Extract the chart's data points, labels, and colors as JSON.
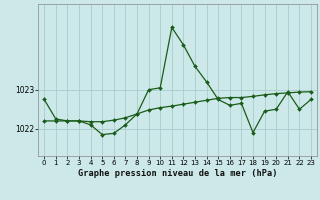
{
  "title": "Graphe pression niveau de la mer (hPa)",
  "background_color": "#cce8e8",
  "grid_color": "#aacccc",
  "line_color": "#1a5c1a",
  "marker_color": "#1a5c1a",
  "x_ticks": [
    0,
    1,
    2,
    3,
    4,
    5,
    6,
    7,
    8,
    9,
    10,
    11,
    12,
    13,
    14,
    15,
    16,
    17,
    18,
    19,
    20,
    21,
    22,
    23
  ],
  "y_ticks": [
    1022,
    1023
  ],
  "ylim": [
    1021.3,
    1025.2
  ],
  "xlim": [
    -0.5,
    23.5
  ],
  "series1_x": [
    0,
    1,
    2,
    3,
    4,
    5,
    6,
    7,
    8,
    9,
    10,
    11,
    12,
    13,
    14,
    15,
    16,
    17,
    18,
    19,
    20,
    21,
    22,
    23
  ],
  "series1_y": [
    1022.75,
    1022.25,
    1022.2,
    1022.2,
    1022.1,
    1021.85,
    1021.88,
    1022.1,
    1022.38,
    1023.0,
    1023.05,
    1024.6,
    1024.15,
    1023.6,
    1023.2,
    1022.75,
    1022.6,
    1022.65,
    1021.9,
    1022.45,
    1022.5,
    1022.95,
    1022.5,
    1022.75
  ],
  "series2_x": [
    0,
    1,
    2,
    3,
    4,
    5,
    6,
    7,
    8,
    9,
    10,
    11,
    12,
    13,
    14,
    15,
    16,
    17,
    18,
    19,
    20,
    21,
    22,
    23
  ],
  "series2_y": [
    1022.2,
    1022.2,
    1022.2,
    1022.2,
    1022.18,
    1022.18,
    1022.22,
    1022.28,
    1022.38,
    1022.48,
    1022.54,
    1022.58,
    1022.63,
    1022.68,
    1022.73,
    1022.78,
    1022.8,
    1022.8,
    1022.83,
    1022.87,
    1022.9,
    1022.92,
    1022.94,
    1022.95
  ]
}
